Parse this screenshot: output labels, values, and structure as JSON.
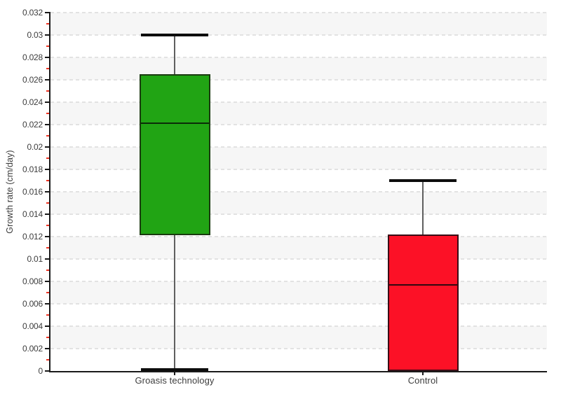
{
  "figure": {
    "ylabel": "Growth rate (cm/day)"
  },
  "chart_data": {
    "type": "boxplot",
    "title": "",
    "xlabel": "",
    "ylabel": "Growth rate (cm/day)",
    "ylim": [
      0,
      0.032
    ],
    "y_major_step": 0.002,
    "y_minor_step": 0.001,
    "y_tick_labels": [
      "0",
      "0.002",
      "0.004",
      "0.006",
      "0.008",
      "0.01",
      "0.012",
      "0.014",
      "0.016",
      "0.018",
      "0.02",
      "0.022",
      "0.024",
      "0.026",
      "0.028",
      "0.03",
      "0.032"
    ],
    "categories": [
      "Groasis technology",
      "Control"
    ],
    "series": [
      {
        "name": "Groasis technology",
        "min": 0.0001,
        "q1": 0.0121,
        "median": 0.0221,
        "q3": 0.0265,
        "max": 0.03,
        "fill": "#21A414",
        "border": "#1A3A10",
        "median_color": "#0B2B08"
      },
      {
        "name": "Control",
        "min": 0,
        "q1": 0,
        "median": 0.0077,
        "q3": 0.0122,
        "max": 0.017,
        "fill": "#FC1126",
        "border": "#380D16",
        "median_color": "#300910"
      }
    ],
    "legend": "none",
    "grid": {
      "horizontal_dashed_majors": true,
      "alternating_bands": true,
      "band_colors": [
        "#f6f6f6",
        "#ffffff"
      ],
      "gridline_color": "#e2e2e2"
    },
    "axis_color": "#1a1a1a",
    "major_tick_color": "#1a1a1a",
    "minor_tick_color": "#ef3525",
    "whisker_color": "#5f5f5f",
    "cap_color": "#0d0d0d",
    "text_color": "#3d3d3d"
  }
}
